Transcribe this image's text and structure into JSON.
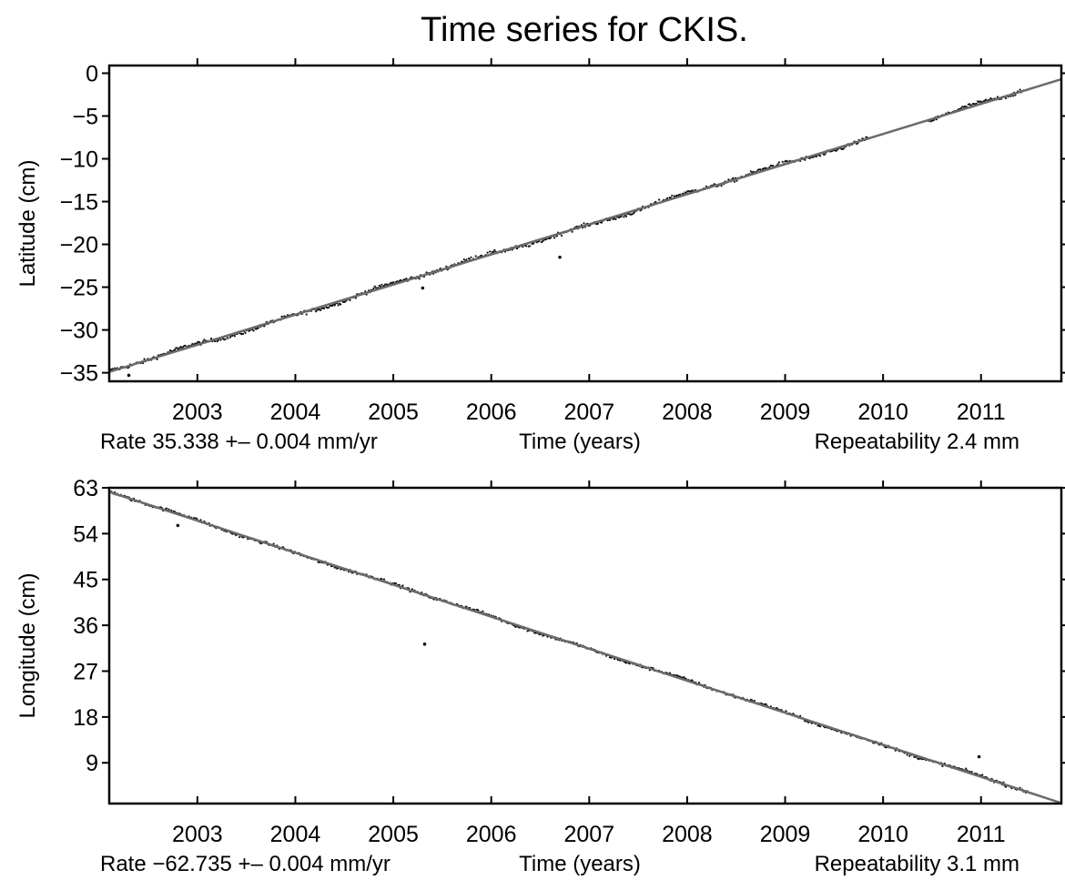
{
  "chart_data": {
    "title": "Time series for CKIS.",
    "panels": [
      {
        "type": "scatter",
        "ylabel": "Latitude (cm)",
        "xlabel": "Time (years)",
        "xlim": [
          2002.1,
          2011.82
        ],
        "ylim": [
          -36,
          0.9
        ],
        "x_ticks": [
          2003,
          2004,
          2005,
          2006,
          2007,
          2008,
          2009,
          2010,
          2011
        ],
        "x_tick_labels": [
          "2003",
          "2004",
          "2005",
          "2006",
          "2007",
          "2008",
          "2009",
          "2010",
          "2011"
        ],
        "y_ticks": [
          0,
          -5,
          -10,
          -15,
          -20,
          -25,
          -30,
          -35
        ],
        "y_tick_labels": [
          "0",
          "−5",
          "−10",
          "−15",
          "−20",
          "−25",
          "−30",
          "−35"
        ],
        "rate_text": "Rate 35.338 +– 0.004 mm/yr",
        "repeatability_text": "Repeatability 2.4 mm",
        "trend_line": {
          "x": [
            2002.1,
            2011.82
          ],
          "y": [
            -34.9,
            -0.7
          ]
        },
        "outliers": [
          {
            "x": 2005.3,
            "y": -25.1
          },
          {
            "x": 2006.7,
            "y": -21.5
          },
          {
            "x": 2002.3,
            "y": -35.3
          },
          {
            "x": 2004.4,
            "y": -26.9
          }
        ],
        "series_color": "#111111",
        "line_color": "#6b6b6b"
      },
      {
        "type": "scatter",
        "ylabel": "Longitude (cm)",
        "xlabel": "Time (years)",
        "xlim": [
          2002.1,
          2011.82
        ],
        "ylim": [
          1,
          63
        ],
        "x_ticks": [
          2003,
          2004,
          2005,
          2006,
          2007,
          2008,
          2009,
          2010,
          2011
        ],
        "x_tick_labels": [
          "2003",
          "2004",
          "2005",
          "2006",
          "2007",
          "2008",
          "2009",
          "2010",
          "2011"
        ],
        "y_ticks": [
          63,
          54,
          45,
          36,
          27,
          18,
          9
        ],
        "y_tick_labels": [
          "63",
          "54",
          "45",
          "36",
          "27",
          "18",
          "9"
        ],
        "rate_text": "Rate −62.735 +– 0.004 mm/yr",
        "repeatability_text": "Repeatability 3.1 mm",
        "trend_line": {
          "x": [
            2002.1,
            2011.82
          ],
          "y": [
            62.2,
            1.1
          ]
        },
        "outliers": [
          {
            "x": 2005.32,
            "y": 32.3
          },
          {
            "x": 2010.98,
            "y": 10.2
          },
          {
            "x": 2002.8,
            "y": 55.6
          }
        ],
        "series_color": "#111111",
        "line_color": "#6b6b6b"
      }
    ]
  }
}
